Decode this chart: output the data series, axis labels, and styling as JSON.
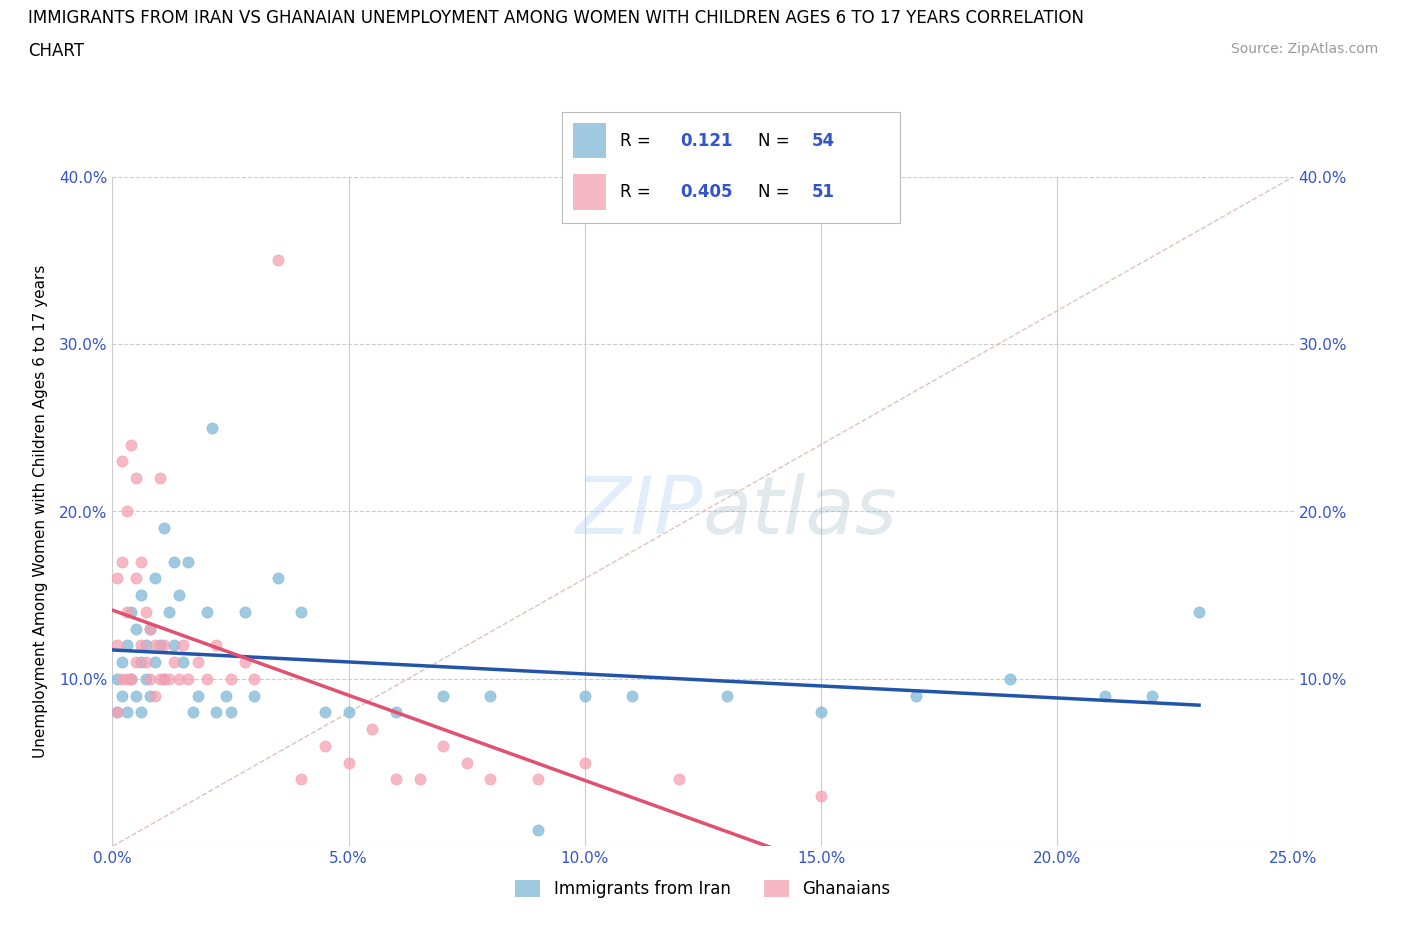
{
  "title_line1": "IMMIGRANTS FROM IRAN VS GHANAIAN UNEMPLOYMENT AMONG WOMEN WITH CHILDREN AGES 6 TO 17 YEARS CORRELATION",
  "title_line2": "CHART",
  "source_text": "Source: ZipAtlas.com",
  "watermark": "ZIPatlas",
  "xlabel": "Immigrants from Iran",
  "ylabel": "Unemployment Among Women with Children Ages 6 to 17 years",
  "xlim": [
    0.0,
    0.25
  ],
  "ylim": [
    0.0,
    0.4
  ],
  "xticks": [
    0.0,
    0.05,
    0.1,
    0.15,
    0.2,
    0.25
  ],
  "yticks": [
    0.0,
    0.1,
    0.2,
    0.3,
    0.4
  ],
  "xticklabels": [
    "0.0%",
    "5.0%",
    "10.0%",
    "15.0%",
    "20.0%",
    "25.0%"
  ],
  "yticklabels_left": [
    "",
    "10.0%",
    "20.0%",
    "30.0%",
    "40.0%"
  ],
  "yticklabels_right": [
    "",
    "10.0%",
    "20.0%",
    "30.0%",
    "40.0%"
  ],
  "iran_scatter_color": "#7EB8D8",
  "ghana_scatter_color": "#F4A0B0",
  "iran_line_color": "#2255AA",
  "ghana_line_color": "#E05070",
  "diag_line_color": "#DDBBBB",
  "R_iran": 0.121,
  "N_iran": 54,
  "R_ghana": 0.405,
  "N_ghana": 51,
  "legend_color": "#3355CC",
  "iran_x": [
    0.001,
    0.001,
    0.002,
    0.002,
    0.003,
    0.003,
    0.004,
    0.004,
    0.005,
    0.005,
    0.006,
    0.006,
    0.006,
    0.007,
    0.007,
    0.008,
    0.008,
    0.009,
    0.009,
    0.01,
    0.011,
    0.011,
    0.012,
    0.013,
    0.013,
    0.014,
    0.015,
    0.016,
    0.017,
    0.018,
    0.02,
    0.021,
    0.022,
    0.024,
    0.025,
    0.028,
    0.03,
    0.035,
    0.04,
    0.045,
    0.05,
    0.06,
    0.07,
    0.08,
    0.09,
    0.1,
    0.11,
    0.13,
    0.15,
    0.17,
    0.19,
    0.21,
    0.22,
    0.23
  ],
  "iran_y": [
    0.08,
    0.1,
    0.09,
    0.11,
    0.08,
    0.12,
    0.1,
    0.14,
    0.09,
    0.13,
    0.08,
    0.11,
    0.15,
    0.1,
    0.12,
    0.09,
    0.13,
    0.11,
    0.16,
    0.12,
    0.1,
    0.19,
    0.14,
    0.12,
    0.17,
    0.15,
    0.11,
    0.17,
    0.08,
    0.09,
    0.14,
    0.25,
    0.08,
    0.09,
    0.08,
    0.14,
    0.09,
    0.16,
    0.14,
    0.08,
    0.08,
    0.08,
    0.09,
    0.09,
    0.01,
    0.09,
    0.09,
    0.09,
    0.08,
    0.09,
    0.1,
    0.09,
    0.09,
    0.14
  ],
  "ghana_x": [
    0.001,
    0.001,
    0.001,
    0.002,
    0.002,
    0.002,
    0.003,
    0.003,
    0.003,
    0.004,
    0.004,
    0.005,
    0.005,
    0.005,
    0.006,
    0.006,
    0.007,
    0.007,
    0.008,
    0.008,
    0.009,
    0.009,
    0.01,
    0.01,
    0.011,
    0.011,
    0.012,
    0.013,
    0.014,
    0.015,
    0.016,
    0.018,
    0.02,
    0.022,
    0.025,
    0.028,
    0.03,
    0.035,
    0.04,
    0.045,
    0.05,
    0.055,
    0.06,
    0.065,
    0.07,
    0.075,
    0.08,
    0.09,
    0.1,
    0.12,
    0.15
  ],
  "ghana_y": [
    0.08,
    0.12,
    0.16,
    0.1,
    0.17,
    0.23,
    0.1,
    0.14,
    0.2,
    0.1,
    0.24,
    0.11,
    0.16,
    0.22,
    0.12,
    0.17,
    0.11,
    0.14,
    0.1,
    0.13,
    0.09,
    0.12,
    0.1,
    0.22,
    0.1,
    0.12,
    0.1,
    0.11,
    0.1,
    0.12,
    0.1,
    0.11,
    0.1,
    0.12,
    0.1,
    0.11,
    0.1,
    0.35,
    0.04,
    0.06,
    0.05,
    0.07,
    0.04,
    0.04,
    0.06,
    0.05,
    0.04,
    0.04,
    0.05,
    0.04,
    0.03
  ]
}
